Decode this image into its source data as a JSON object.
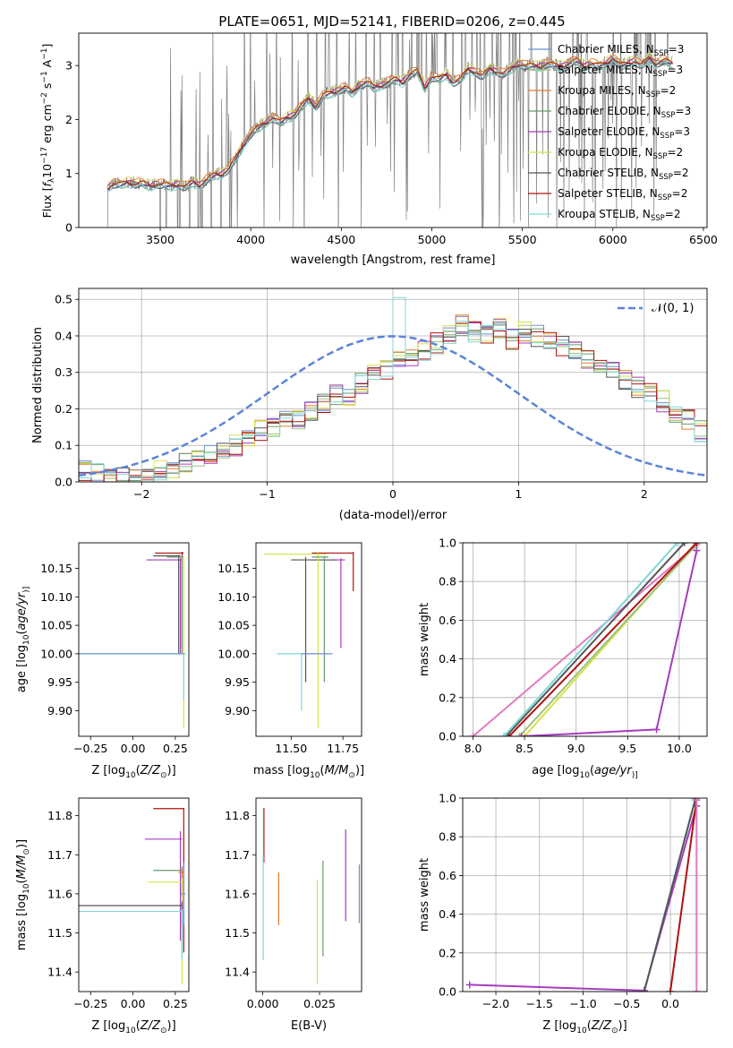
{
  "figure": {
    "title": "PLATE=0651, MJD=52141, FIBERID=0206, z=0.445"
  },
  "colors": {
    "Chabrier MILES": "#6d8fd4",
    "Salpeter MILES": "#9ec17a",
    "Kroupa MILES": "#e07b2e",
    "Chabrier ELODIE": "#6a9a6a",
    "Salpeter ELODIE": "#a63cbf",
    "Kroupa ELODIE": "#d7e04a",
    "Chabrier STELIB": "#555555",
    "Salpeter STELIB": "#b01010",
    "Kroupa STELIB": "#7fd6d6",
    "data": "#808080",
    "gaussian": "#5b84d8",
    "pink": "#e07bc0"
  },
  "chart_data": [
    {
      "id": "spectrum",
      "type": "line",
      "title": "PLATE=0651, MJD=52141, FIBERID=0206, z=0.445",
      "xlabel": "wavelength [Angstrom, rest frame]",
      "ylabel_parts": [
        "Flux [",
        "f",
        "λ",
        "10",
        "−17",
        " erg cm",
        "−2",
        " s",
        "−1",
        " A",
        "−1",
        "]"
      ],
      "xlim": [
        3050,
        6520
      ],
      "ylim": [
        0,
        3.6
      ],
      "xticks": [
        3500,
        4000,
        4500,
        5000,
        5500,
        6000,
        6500
      ],
      "yticks": [
        0,
        1,
        2,
        3
      ],
      "legend_position": "upper right",
      "legend": [
        {
          "label": "Chabrier MILES, N",
          "sub": "SSP",
          "suffix": "=3",
          "key": "Chabrier MILES"
        },
        {
          "label": "Salpeter MILES, N",
          "sub": "SSP",
          "suffix": "=3",
          "key": "Salpeter MILES"
        },
        {
          "label": "Kroupa MILES, N",
          "sub": "SSP",
          "suffix": "=2",
          "key": "Kroupa MILES"
        },
        {
          "label": "Chabrier ELODIE, N",
          "sub": "SSP",
          "suffix": "=3",
          "key": "Chabrier ELODIE"
        },
        {
          "label": "Salpeter ELODIE, N",
          "sub": "SSP",
          "suffix": "=3",
          "key": "Salpeter ELODIE"
        },
        {
          "label": "Kroupa ELODIE, N",
          "sub": "SSP",
          "suffix": "=2",
          "key": "Kroupa ELODIE"
        },
        {
          "label": "Chabrier STELIB, N",
          "sub": "SSP",
          "suffix": "=2",
          "key": "Chabrier STELIB"
        },
        {
          "label": "Salpeter STELIB, N",
          "sub": "SSP",
          "suffix": "=2",
          "key": "Salpeter STELIB"
        },
        {
          "label": "Kroupa STELIB, N",
          "sub": "SSP",
          "suffix": "=2",
          "key": "Kroupa STELIB"
        }
      ],
      "model_continuum": {
        "x": [
          3210,
          3240,
          3280,
          3320,
          3360,
          3400,
          3440,
          3480,
          3520,
          3560,
          3600,
          3640,
          3680,
          3720,
          3760,
          3800,
          3840,
          3880,
          3920,
          3960,
          4000,
          4040,
          4080,
          4120,
          4160,
          4200,
          4240,
          4280,
          4320,
          4360,
          4400,
          4440,
          4480,
          4520,
          4560,
          4600,
          4640,
          4680,
          4720,
          4760,
          4800,
          4840,
          4880,
          4920,
          4960,
          5000,
          5040,
          5080,
          5120,
          5160,
          5200,
          5240,
          5280,
          5320,
          5360,
          5400,
          5440,
          5480,
          5520,
          5560,
          5600,
          5640,
          5680,
          5720,
          5760,
          5800,
          5840,
          5880,
          5920,
          5960,
          6000,
          6040,
          6080,
          6120,
          6160,
          6200,
          6240,
          6280,
          6320
        ],
        "y": [
          0.75,
          0.82,
          0.8,
          0.85,
          0.82,
          0.83,
          0.78,
          0.82,
          0.8,
          0.78,
          0.82,
          0.75,
          0.85,
          0.8,
          0.9,
          0.98,
          1.0,
          1.1,
          1.3,
          1.55,
          1.75,
          1.85,
          1.95,
          2.05,
          1.95,
          2.05,
          2.1,
          2.25,
          2.4,
          2.25,
          2.45,
          2.5,
          2.55,
          2.6,
          2.5,
          2.65,
          2.7,
          2.6,
          2.65,
          2.7,
          2.75,
          2.7,
          2.85,
          2.9,
          2.6,
          2.8,
          2.75,
          2.85,
          2.7,
          2.75,
          2.95,
          2.9,
          2.8,
          2.95,
          2.9,
          2.85,
          2.95,
          3.05,
          3.0,
          3.0,
          3.0,
          3.05,
          3.0,
          3.0,
          3.05,
          3.1,
          3.0,
          3.05,
          3.0,
          3.05,
          3.15,
          3.0,
          3.05,
          3.1,
          3.0,
          3.15,
          3.05,
          3.1,
          3.05
        ]
      }
    },
    {
      "id": "residuals",
      "type": "step",
      "xlabel": "(data-model)/error",
      "ylabel": "Normed distribution",
      "xlim": [
        -2.5,
        2.5
      ],
      "ylim": [
        0,
        0.53
      ],
      "xticks": [
        -2,
        -1,
        0,
        1,
        2
      ],
      "yticks": [
        0.0,
        0.1,
        0.2,
        0.3,
        0.4,
        0.5
      ],
      "grid": true,
      "legend_position": "upper right",
      "gaussian_label": "𝒩(0, 1)",
      "bin_edges_start": -2.5,
      "bin_width": 0.1,
      "histogram_reference": [
        0.03,
        0.02,
        0.02,
        0.01,
        0.01,
        0.02,
        0.03,
        0.04,
        0.05,
        0.06,
        0.07,
        0.08,
        0.1,
        0.12,
        0.14,
        0.15,
        0.18,
        0.17,
        0.19,
        0.22,
        0.24,
        0.23,
        0.27,
        0.29,
        0.31,
        0.33,
        0.34,
        0.36,
        0.38,
        0.4,
        0.43,
        0.41,
        0.4,
        0.42,
        0.39,
        0.41,
        0.4,
        0.39,
        0.37,
        0.36,
        0.34,
        0.31,
        0.3,
        0.28,
        0.26,
        0.24,
        0.22,
        0.19,
        0.17,
        0.14,
        0.12,
        0.1,
        0.09,
        0.07,
        0.07,
        0.06,
        0.05,
        0.04,
        0.03,
        0.03
      ]
    },
    {
      "id": "age-vs-Z",
      "type": "errorbar",
      "xlabel_parts": [
        "Z [log",
        "10",
        "(",
        "Z/Z",
        "⊙",
        ")]"
      ],
      "ylabel_parts": [
        "age  [log",
        "10",
        "(",
        "age/yr",
        ")]"
      ],
      "xlim": [
        -0.32,
        0.33
      ],
      "ylim": [
        9.855,
        10.195
      ],
      "xticks": [
        -0.25,
        0.0,
        0.25
      ],
      "xticklabels": [
        "−0.25",
        "0.00",
        "0.25"
      ],
      "yticks": [
        9.9,
        9.95,
        10.0,
        10.05,
        10.1,
        10.15
      ],
      "points": [
        {
          "key": "Salpeter STELIB",
          "x": 0.29,
          "xlo": 0.13,
          "xhi": 0.3,
          "y": 10.177,
          "ylo": 10.01,
          "yhi": 10.179
        },
        {
          "key": "Salpeter ELODIE",
          "x": 0.28,
          "xlo": 0.08,
          "xhi": 0.29,
          "y": 10.165,
          "ylo": 10.0,
          "yhi": 10.168
        },
        {
          "key": "Chabrier STELIB",
          "x": 0.27,
          "xlo": 0.12,
          "xhi": 0.28,
          "y": 10.172,
          "ylo": 10.0,
          "yhi": 10.174
        },
        {
          "key": "Chabrier ELODIE",
          "x": 0.29,
          "xlo": 0.2,
          "xhi": 0.3,
          "y": 10.17,
          "ylo": 10.0,
          "yhi": 10.172
        },
        {
          "key": "Kroupa ELODIE",
          "x": 0.3,
          "xlo": 0.28,
          "xhi": 0.31,
          "y": 10.0,
          "ylo": 9.87,
          "yhi": 10.17
        },
        {
          "key": "Kroupa STELIB",
          "x": 0.3,
          "xlo": -0.32,
          "xhi": 0.31,
          "y": 10.0,
          "ylo": 9.92,
          "yhi": 10.0
        },
        {
          "key": "Chabrier MILES",
          "x": 0.3,
          "xlo": -0.32,
          "xhi": 0.3,
          "y": 10.0,
          "ylo": 10.0,
          "yhi": 10.0
        }
      ]
    },
    {
      "id": "age-vs-mass",
      "type": "errorbar",
      "xlabel_parts": [
        "mass [log",
        "10",
        "(",
        "M/M",
        "⊙",
        ")]"
      ],
      "xlim": [
        11.33,
        11.84
      ],
      "ylim": [
        9.855,
        10.195
      ],
      "xticks": [
        11.5,
        11.75
      ],
      "xticklabels": [
        "11.50",
        "11.75"
      ],
      "yticks": [
        9.9,
        9.95,
        10.0,
        10.05,
        10.1,
        10.15
      ],
      "points": [
        {
          "key": "Salpeter STELIB",
          "x": 11.8,
          "xlo": 11.6,
          "xhi": 11.8,
          "y": 10.177,
          "ylo": 10.11,
          "yhi": 10.179
        },
        {
          "key": "Salpeter ELODIE",
          "x": 11.74,
          "xlo": 11.6,
          "xhi": 11.76,
          "y": 10.165,
          "ylo": 10.01,
          "yhi": 10.168
        },
        {
          "key": "Chabrier STELIB",
          "x": 11.57,
          "xlo": 11.5,
          "xhi": 11.72,
          "y": 10.165,
          "ylo": 9.95,
          "yhi": 10.17
        },
        {
          "key": "Kroupa ELODIE",
          "x": 11.63,
          "xlo": 11.37,
          "xhi": 11.67,
          "y": 10.175,
          "ylo": 9.87,
          "yhi": 10.177
        },
        {
          "key": "Chabrier ELODIE",
          "x": 11.66,
          "xlo": 11.6,
          "xhi": 11.68,
          "y": 10.17,
          "ylo": 9.95,
          "yhi": 10.172
        },
        {
          "key": "Kroupa STELIB",
          "x": 11.55,
          "xlo": 11.43,
          "xhi": 11.58,
          "y": 10.0,
          "ylo": 9.9,
          "yhi": 10.0
        },
        {
          "key": "Chabrier MILES",
          "x": 11.62,
          "xlo": 11.55,
          "xhi": 11.7,
          "y": 10.0,
          "ylo": 10.0,
          "yhi": 10.0
        }
      ]
    },
    {
      "id": "massweight-vs-age",
      "type": "line",
      "xlabel_parts": [
        "age  [log",
        "10",
        "(",
        "age/yr",
        ")]"
      ],
      "ylabel": "mass weight",
      "xlim": [
        7.9,
        10.27
      ],
      "ylim": [
        0,
        1
      ],
      "xticks": [
        8.0,
        8.5,
        9.0,
        9.5,
        10.0
      ],
      "yticks": [
        0.0,
        0.2,
        0.4,
        0.6,
        0.8,
        1.0
      ],
      "grid": true,
      "series": [
        {
          "key": "pink",
          "x": [
            8.0,
            10.17
          ],
          "y": [
            0.0,
            0.99
          ]
        },
        {
          "key": "Kroupa ELODIE",
          "x": [
            8.5,
            10.17
          ],
          "y": [
            0.0,
            1.0
          ]
        },
        {
          "key": "Salpeter MILES",
          "x": [
            8.45,
            10.15
          ],
          "y": [
            0.0,
            0.98
          ]
        },
        {
          "key": "Salpeter STELIB",
          "x": [
            8.35,
            10.17
          ],
          "y": [
            0.0,
            1.0
          ]
        },
        {
          "key": "Chabrier STELIB",
          "x": [
            8.32,
            10.05
          ],
          "y": [
            0.0,
            1.0
          ]
        },
        {
          "key": "Kroupa STELIB",
          "x": [
            8.3,
            9.98
          ],
          "y": [
            0.0,
            1.0
          ]
        },
        {
          "key": "Salpeter ELODIE",
          "x": [
            8.47,
            9.78,
            10.17
          ],
          "y": [
            0.0,
            0.035,
            0.96
          ]
        }
      ]
    },
    {
      "id": "mass-vs-Z",
      "type": "errorbar",
      "xlabel_parts": [
        "Z [log",
        "10",
        "(",
        "Z/Z",
        "⊙",
        ")]"
      ],
      "ylabel_parts": [
        "mass [log",
        "10",
        "(",
        "M/M",
        "⊙",
        ")]"
      ],
      "xlim": [
        -0.32,
        0.33
      ],
      "ylim": [
        11.35,
        11.845
      ],
      "xticks": [
        -0.25,
        0.0,
        0.25
      ],
      "xticklabels": [
        "−0.25",
        "0.00",
        "0.25"
      ],
      "yticks": [
        11.4,
        11.5,
        11.6,
        11.7,
        11.8
      ],
      "points": [
        {
          "key": "Salpeter STELIB",
          "x": 0.3,
          "xlo": 0.12,
          "xhi": 0.3,
          "y": 11.818,
          "ylo": 11.45,
          "yhi": 11.82
        },
        {
          "key": "Salpeter ELODIE",
          "x": 0.28,
          "xlo": 0.07,
          "xhi": 0.29,
          "y": 11.74,
          "ylo": 11.48,
          "yhi": 11.76
        },
        {
          "key": "Chabrier ELODIE",
          "x": 0.29,
          "xlo": 0.12,
          "xhi": 0.29,
          "y": 11.66,
          "ylo": 11.44,
          "yhi": 11.67
        },
        {
          "key": "Kroupa MILES",
          "x": 0.29,
          "xlo": 0.27,
          "xhi": 0.3,
          "y": 11.655,
          "ylo": 11.6,
          "yhi": 11.665
        },
        {
          "key": "Kroupa ELODIE",
          "x": 0.29,
          "xlo": 0.09,
          "xhi": 0.3,
          "y": 11.63,
          "ylo": 11.37,
          "yhi": 11.64
        },
        {
          "key": "Chabrier STELIB",
          "x": 0.29,
          "xlo": -0.32,
          "xhi": 0.29,
          "y": 11.57,
          "ylo": 11.52,
          "yhi": 11.58
        },
        {
          "key": "Kroupa STELIB",
          "x": 0.29,
          "xlo": -0.32,
          "xhi": 0.3,
          "y": 11.555,
          "ylo": 11.43,
          "yhi": 11.56
        },
        {
          "key": "Chabrier MILES",
          "x": 0.3,
          "xlo": 0.28,
          "xhi": 0.31,
          "y": 11.6,
          "ylo": 11.52,
          "yhi": 11.68
        }
      ]
    },
    {
      "id": "mass-vs-EBV",
      "type": "errorbar",
      "xlabel": "E(B-V)",
      "xlim": [
        -0.003,
        0.0435
      ],
      "ylim": [
        11.35,
        11.845
      ],
      "xticks": [
        0.0,
        0.025
      ],
      "xticklabels": [
        "0.000",
        "0.025"
      ],
      "yticks": [
        11.4,
        11.5,
        11.6,
        11.7,
        11.8
      ],
      "points": [
        {
          "key": "Salpeter STELIB",
          "x": 0.0005,
          "ylo": 11.68,
          "yhi": 11.82
        },
        {
          "key": "Kroupa STELIB",
          "x": 0.0002,
          "ylo": 11.43,
          "yhi": 11.7
        },
        {
          "key": "Kroupa MILES",
          "x": 0.007,
          "ylo": 11.52,
          "yhi": 11.655
        },
        {
          "key": "Kroupa ELODIE",
          "x": 0.024,
          "ylo": 11.37,
          "yhi": 11.635
        },
        {
          "key": "Chabrier ELODIE",
          "x": 0.0265,
          "ylo": 11.44,
          "yhi": 11.685
        },
        {
          "key": "Salpeter ELODIE",
          "x": 0.0365,
          "ylo": 11.53,
          "yhi": 11.765
        },
        {
          "key": "Chabrier MILES",
          "x": 0.0425,
          "ylo": 11.525,
          "yhi": 11.675
        }
      ]
    },
    {
      "id": "massweight-vs-Z",
      "type": "line",
      "xlabel_parts": [
        "Z [log",
        "10",
        "(",
        "Z/Z",
        "⊙",
        ")]"
      ],
      "ylabel": "mass weight",
      "xlim": [
        -2.38,
        0.42
      ],
      "ylim": [
        0,
        1
      ],
      "xticks": [
        -2.0,
        -1.5,
        -1.0,
        -0.5,
        0.0
      ],
      "xticklabels": [
        "−2.0",
        "−1.5",
        "−1.0",
        "−0.5",
        "0.0"
      ],
      "yticks": [
        0.0,
        0.2,
        0.4,
        0.6,
        0.8,
        1.0
      ],
      "grid": true,
      "series": [
        {
          "key": "Salpeter ELODIE",
          "x": [
            -2.3,
            -0.3,
            0.3
          ],
          "y": [
            0.035,
            0.005,
            0.96
          ]
        },
        {
          "key": "Kroupa STELIB",
          "x": [
            -0.3,
            0.28
          ],
          "y": [
            0.0,
            0.99
          ]
        },
        {
          "key": "Chabrier STELIB",
          "x": [
            -0.3,
            0.29
          ],
          "y": [
            0.0,
            1.0
          ]
        },
        {
          "key": "Salpeter STELIB",
          "x": [
            0.0,
            0.3
          ],
          "y": [
            0.0,
            0.99
          ]
        },
        {
          "key": "pink",
          "x": [
            0.3,
            0.3
          ],
          "y": [
            0.0,
            0.99
          ]
        }
      ]
    }
  ]
}
